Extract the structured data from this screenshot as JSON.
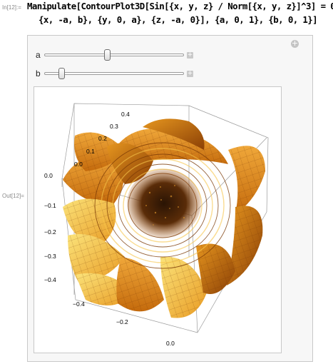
{
  "cell": {
    "in_label": "In[12]:=",
    "out_label": "Out[12]=",
    "code_line1": "Manipulate[ContourPlot3D[Sin[{x, y, z} / Norm[{x, y, z}]^3] = 0,",
    "code_line2": "{x, -a, b}, {y, 0, a}, {z, -a, 0}], {a, 0, 1}, {b, 0, 1}]"
  },
  "controls": [
    {
      "label": "a",
      "value": 0.5
    },
    {
      "label": "b",
      "value": 0.1
    }
  ],
  "plot": {
    "vertical_axis_ticks": [
      "0.4",
      "0.3",
      "0.2",
      "0.1",
      "0.0"
    ],
    "left_axis_ticks": [
      "0.0",
      "−0.1",
      "−0.2",
      "−0.3",
      "−0.4"
    ],
    "bottom_axis_ticks": [
      "−0.4",
      "−0.2",
      "0.0"
    ]
  },
  "colors": {
    "surface_dark": "#b85a08",
    "surface_mid": "#e08a1c",
    "surface_light": "#f3c23a",
    "surface_pale": "#f7e36a",
    "panel_bg": "#f7f7f7"
  }
}
